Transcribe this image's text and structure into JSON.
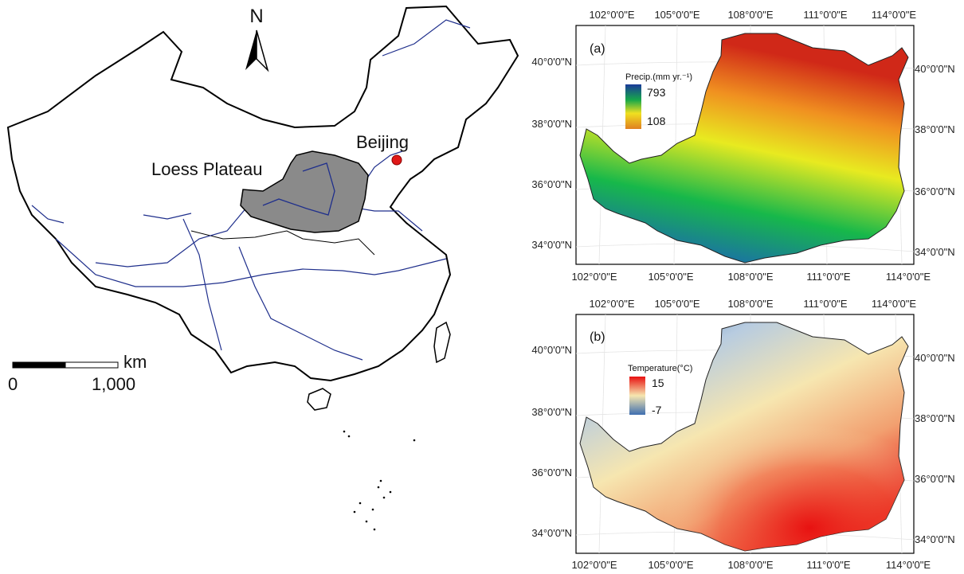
{
  "overview_map": {
    "north_label": "N",
    "places": [
      {
        "name": "Loess Plateau"
      },
      {
        "name": "Beijing"
      }
    ],
    "scalebar": {
      "unit": "km",
      "labels": [
        "0",
        "1,000"
      ]
    },
    "colors": {
      "border": "#000000",
      "rivers": "#1f2f8c",
      "plateau": "#8a8a8a",
      "beijing": "#e01818"
    }
  },
  "panels": [
    {
      "label": "(a)",
      "legend": {
        "title": "Precip.(mm yr.⁻¹)",
        "max": "793",
        "min": "108",
        "ramp": [
          "#1a3a9a",
          "#17a84a",
          "#f0e020",
          "#d02818"
        ]
      },
      "x_ticks": [
        "102°0'0\"E",
        "105°0'0\"E",
        "108°0'0\"E",
        "111°0'0\"E",
        "114°0'0\"E"
      ],
      "y_ticks_left": [
        "40°0'0\"N",
        "38°0'0\"N",
        "36°0'0\"N",
        "34°0'0\"N"
      ],
      "y_ticks_right": [
        "40°0'0\"N",
        "38°0'0\"N",
        "36°0'0\"N",
        "34°0'0\"N"
      ]
    },
    {
      "label": "(b)",
      "legend": {
        "title": "Temperature(°C)",
        "max": "15",
        "min": "-7",
        "ramp": [
          "#e81010",
          "#f6e6b0",
          "#3e6fb0"
        ]
      },
      "x_ticks": [
        "102°0'0\"E",
        "105°0'0\"E",
        "108°0'0\"E",
        "111°0'0\"E",
        "114°0'0\"E"
      ],
      "y_ticks_left": [
        "40°0'0\"N",
        "38°0'0\"N",
        "36°0'0\"N",
        "34°0'0\"N"
      ],
      "y_ticks_right": [
        "40°0'0\"N",
        "38°0'0\"N",
        "36°0'0\"N",
        "34°0'0\"N"
      ]
    }
  ]
}
